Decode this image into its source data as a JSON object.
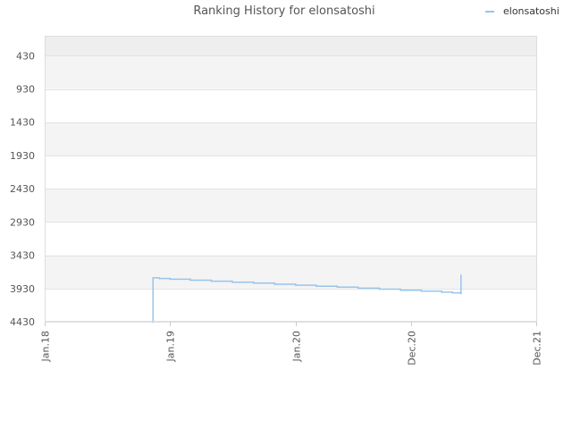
{
  "chart_data": {
    "type": "line",
    "title": "Ranking History for elonsatoshi",
    "xlabel": "",
    "ylabel": "",
    "y_inverted": true,
    "ylim": [
      130,
      4430
    ],
    "y_ticks": [
      430,
      930,
      1430,
      1930,
      2430,
      2930,
      3430,
      3930,
      4430
    ],
    "x_ticks": [
      {
        "date": "2018-01-01",
        "label": "Jan.18"
      },
      {
        "date": "2019-01-01",
        "label": "Jan.19"
      },
      {
        "date": "2020-01-01",
        "label": "Jan.20"
      },
      {
        "date": "2020-12-01",
        "label": "Dec.20"
      },
      {
        "date": "2021-12-01",
        "label": "Dec.21"
      }
    ],
    "xlim": [
      "2018-01-01",
      "2021-12-01"
    ],
    "grid": true,
    "alternating_bands": true,
    "legend": {
      "position": "top-right"
    },
    "series": [
      {
        "name": "elonsatoshi",
        "color": "#99c4ec",
        "step": true,
        "points": [
          {
            "x": "2018-11-10",
            "y": 4430
          },
          {
            "x": "2018-11-12",
            "y": 3770
          },
          {
            "x": "2018-12-01",
            "y": 3780
          },
          {
            "x": "2019-01-01",
            "y": 3790
          },
          {
            "x": "2019-03-01",
            "y": 3805
          },
          {
            "x": "2019-05-01",
            "y": 3820
          },
          {
            "x": "2019-07-01",
            "y": 3835
          },
          {
            "x": "2019-09-01",
            "y": 3850
          },
          {
            "x": "2019-11-01",
            "y": 3865
          },
          {
            "x": "2020-01-01",
            "y": 3880
          },
          {
            "x": "2020-03-01",
            "y": 3895
          },
          {
            "x": "2020-05-01",
            "y": 3910
          },
          {
            "x": "2020-07-01",
            "y": 3925
          },
          {
            "x": "2020-09-01",
            "y": 3940
          },
          {
            "x": "2020-11-01",
            "y": 3955
          },
          {
            "x": "2021-01-01",
            "y": 3970
          },
          {
            "x": "2021-03-01",
            "y": 3985
          },
          {
            "x": "2021-04-01",
            "y": 3995
          },
          {
            "x": "2021-04-25",
            "y": 4005
          },
          {
            "x": "2021-04-26",
            "y": 3730
          }
        ]
      }
    ]
  }
}
